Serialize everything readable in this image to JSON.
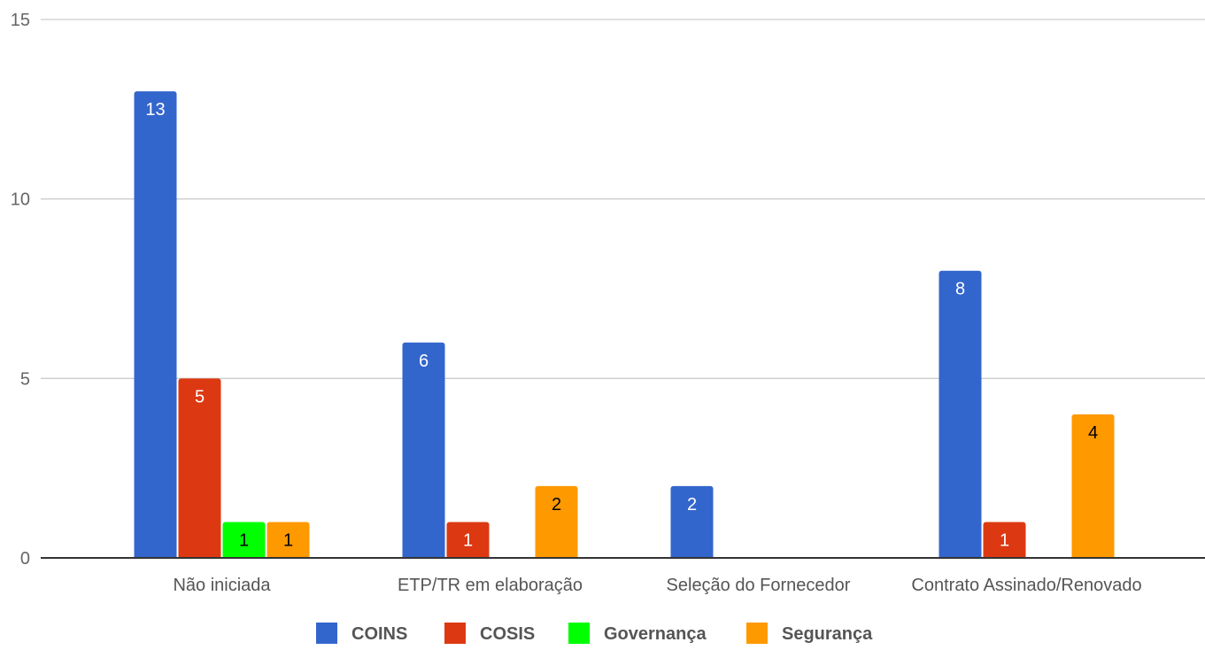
{
  "chart_data": {
    "type": "bar",
    "title": "",
    "xlabel": "",
    "ylabel": "",
    "ylim": [
      0,
      15
    ],
    "yticks": [
      0,
      5,
      10,
      15
    ],
    "grid": true,
    "legend_position": "bottom",
    "categories": [
      "Não iniciada",
      "ETP/TR em elaboração",
      "Seleção do Fornecedor",
      "Contrato Assinado/Renovado"
    ],
    "series": [
      {
        "name": "COINS",
        "color": "#3366cc",
        "label_color": "#ffffff",
        "values": [
          13,
          6,
          2,
          8
        ]
      },
      {
        "name": "COSIS",
        "color": "#dc3912",
        "label_color": "#ffffff",
        "values": [
          5,
          1,
          null,
          1
        ]
      },
      {
        "name": "Governança",
        "color": "#00ff00",
        "label_color": "#000000",
        "values": [
          1,
          null,
          null,
          null
        ]
      },
      {
        "name": "Segurança",
        "color": "#ff9900",
        "label_color": "#000000",
        "values": [
          1,
          2,
          null,
          4
        ]
      }
    ]
  }
}
